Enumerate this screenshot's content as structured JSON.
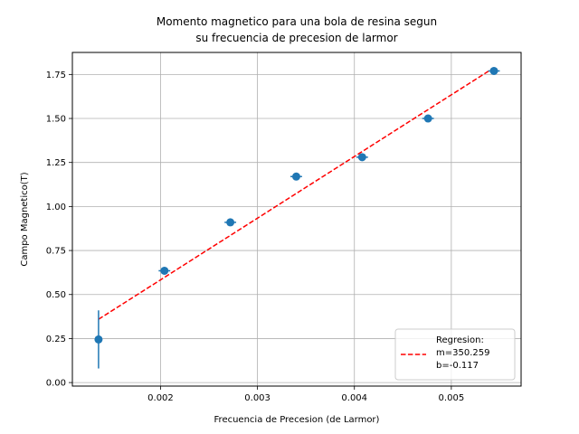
{
  "chart_data": {
    "type": "scatter",
    "title_lines": [
      "Momento magnetico para una bola de resina segun",
      "su frecuencia de precesion de larmor"
    ],
    "xlabel": "Frecuencia de Precesion (de Larmor)",
    "ylabel": "Campo Magnetico(T)",
    "xlim": [
      0.00109,
      0.00572
    ],
    "ylim": [
      -0.02,
      1.875
    ],
    "x_ticks": [
      0.002,
      0.003,
      0.004,
      0.005
    ],
    "x_tick_labels": [
      "0.002",
      "0.003",
      "0.004",
      "0.005"
    ],
    "y_ticks": [
      0.0,
      0.25,
      0.5,
      0.75,
      1.0,
      1.25,
      1.5,
      1.75
    ],
    "y_tick_labels": [
      "0.00",
      "0.25",
      "0.50",
      "0.75",
      "1.00",
      "1.25",
      "1.50",
      "1.75"
    ],
    "grid": true,
    "points": {
      "x": [
        0.00136,
        0.00204,
        0.00272,
        0.0034,
        0.00408,
        0.00476,
        0.00544
      ],
      "y": [
        0.245,
        0.635,
        0.91,
        1.17,
        1.28,
        1.5,
        1.77
      ],
      "y_err": [
        0.165,
        0.012,
        0.012,
        0.012,
        0.012,
        0.012,
        0.012
      ],
      "x_err": [
        3e-05,
        6e-05,
        6e-05,
        6e-05,
        6e-05,
        6e-05,
        6e-05
      ],
      "color": "#1f77b4"
    },
    "regression": {
      "x_range": [
        0.00136,
        0.00544
      ],
      "m": 350.259,
      "b": -0.117,
      "color": "#ff0000",
      "style": "dashed"
    },
    "legend": {
      "position": "bottom-right",
      "lines": [
        "Regresion:",
        "m=350.259",
        "b=-0.117"
      ]
    }
  }
}
